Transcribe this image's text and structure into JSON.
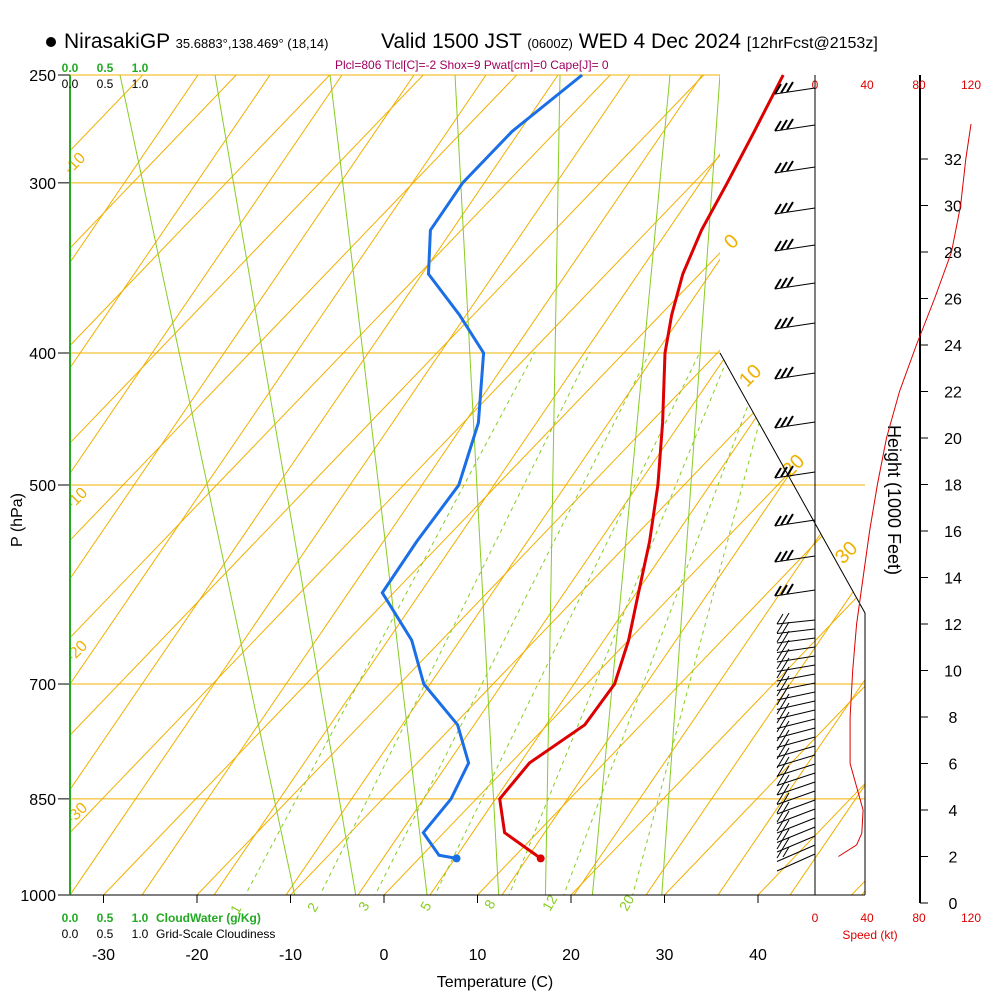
{
  "header": {
    "station": "NirasakiGP",
    "coords": "35.6883°,138.469° (18,14)",
    "valid": "Valid 1500 JST",
    "zulu": "(0600Z)",
    "date": "WED 4 Dec 2024",
    "forecast": "[12hrFcst@2153z]",
    "indices": "Plcl=806 Tlcl[C]=-2 Shox=9 Pwat[cm]=0 Cape[J]= 0"
  },
  "colors": {
    "temperature": "#dd0000",
    "dewpoint": "#1a6ee6",
    "isotherm": "#f0b000",
    "mixing_ratio": "#88cc22",
    "cloud_scale": "#22aa22",
    "wind_speed": "#dd0000",
    "indices": "#a00060"
  },
  "chart_data": {
    "type": "skew-t",
    "xlabel": "Temperature (C)",
    "ylabel": "P (hPa)",
    "x_ticks": [
      -30,
      -20,
      -10,
      0,
      10,
      20,
      30,
      40
    ],
    "y_ticks": [
      250,
      300,
      400,
      500,
      700,
      850,
      1000
    ],
    "ylim": [
      1000,
      250
    ],
    "temperature_profile": [
      {
        "p": 250,
        "t": -41.5
      },
      {
        "p": 275,
        "t": -38.8
      },
      {
        "p": 300,
        "t": -36.4
      },
      {
        "p": 325,
        "t": -34.3
      },
      {
        "p": 350,
        "t": -31.8
      },
      {
        "p": 375,
        "t": -28.8
      },
      {
        "p": 400,
        "t": -25.6
      },
      {
        "p": 450,
        "t": -18.7
      },
      {
        "p": 500,
        "t": -12.8
      },
      {
        "p": 550,
        "t": -7.9
      },
      {
        "p": 600,
        "t": -3.8
      },
      {
        "p": 650,
        "t": 0.0
      },
      {
        "p": 700,
        "t": 3.0
      },
      {
        "p": 750,
        "t": 4.0
      },
      {
        "p": 800,
        "t": 2.0
      },
      {
        "p": 850,
        "t": 2.5
      },
      {
        "p": 900,
        "t": 6.5
      },
      {
        "p": 940,
        "t": 13.0
      }
    ],
    "dewpoint_profile": [
      {
        "p": 250,
        "t": -63.0
      },
      {
        "p": 275,
        "t": -64.7
      },
      {
        "p": 300,
        "t": -64.7
      },
      {
        "p": 325,
        "t": -63.3
      },
      {
        "p": 350,
        "t": -59.0
      },
      {
        "p": 375,
        "t": -51.5
      },
      {
        "p": 400,
        "t": -45.0
      },
      {
        "p": 450,
        "t": -38.4
      },
      {
        "p": 500,
        "t": -34.1
      },
      {
        "p": 550,
        "t": -32.8
      },
      {
        "p": 600,
        "t": -31.2
      },
      {
        "p": 650,
        "t": -23.2
      },
      {
        "p": 700,
        "t": -17.4
      },
      {
        "p": 750,
        "t": -9.6
      },
      {
        "p": 800,
        "t": -4.5
      },
      {
        "p": 850,
        "t": -2.7
      },
      {
        "p": 900,
        "t": -2.2
      },
      {
        "p": 935,
        "t": 1.8
      },
      {
        "p": 940,
        "t": 4.0
      }
    ],
    "isotherm_labels": [
      "-10",
      "0",
      "10",
      "20",
      "30",
      "-10",
      "-20",
      "-30"
    ],
    "mixing_ratio_labels": [
      "1",
      "2",
      "3",
      "5",
      "8",
      "12",
      "20"
    ],
    "height_axis": {
      "label": "Height (1000 Feet)",
      "ticks": [
        0,
        2,
        4,
        6,
        8,
        10,
        12,
        14,
        16,
        18,
        20,
        22,
        24,
        26,
        28,
        30,
        32
      ]
    },
    "wind_speed": {
      "label": "Speed (kt)",
      "ticks": [
        0,
        40,
        80,
        120
      ],
      "profile_kft_kt": [
        {
          "h": 2.0,
          "s": 18
        },
        {
          "h": 2.5,
          "s": 32
        },
        {
          "h": 3.0,
          "s": 36
        },
        {
          "h": 4.0,
          "s": 37
        },
        {
          "h": 5.0,
          "s": 32
        },
        {
          "h": 6.0,
          "s": 27
        },
        {
          "h": 8.0,
          "s": 27
        },
        {
          "h": 10.0,
          "s": 29
        },
        {
          "h": 12.0,
          "s": 32
        },
        {
          "h": 14.0,
          "s": 37
        },
        {
          "h": 16.0,
          "s": 42
        },
        {
          "h": 18.0,
          "s": 48
        },
        {
          "h": 20.0,
          "s": 55
        },
        {
          "h": 22.0,
          "s": 65
        },
        {
          "h": 24.0,
          "s": 78
        },
        {
          "h": 26.0,
          "s": 92
        },
        {
          "h": 28.0,
          "s": 105
        },
        {
          "h": 30.0,
          "s": 112
        },
        {
          "h": 32.0,
          "s": 116
        },
        {
          "h": 33.5,
          "s": 120
        }
      ]
    },
    "cloud_water_scale": {
      "label": "CloudWater (g/Kg)",
      "ticks": [
        "0.0",
        "0.5",
        "1.0"
      ]
    },
    "cloudiness_scale": {
      "label": "Grid-Scale Cloudiness",
      "ticks": [
        "0.0",
        "0.5",
        "1.0"
      ]
    }
  }
}
